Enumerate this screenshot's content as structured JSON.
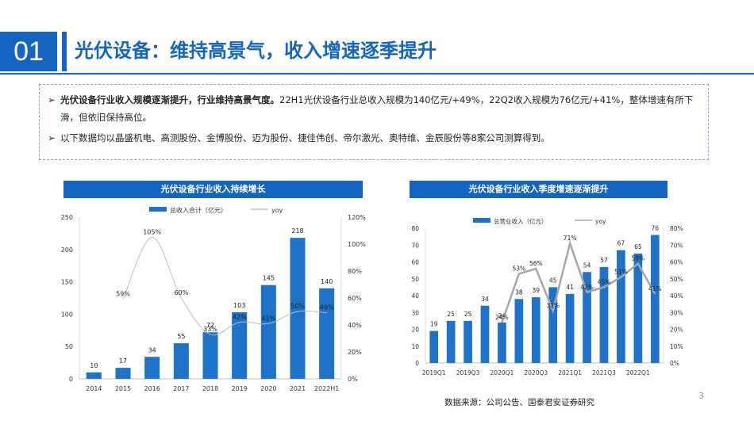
{
  "header": {
    "section_number": "01",
    "title": "光伏设备：维持高景气，收入增速逐季提升"
  },
  "summary": {
    "bullet1_bold": "光伏设备行业收入规模逐渐提升，行业维持高景气度。",
    "bullet1_text": "22H1光伏设备行业总收入规模为140亿元/+49%，22Q2收入规模为76亿元/+41%，整体增速有所下滑，但依旧保持高位。",
    "bullet2_text": "以下数据均以晶盛机电、高测股份、金博股份、迈为股份、捷佳伟创、帝尔激光、奥特维、金辰股份等8家公司测算得到。",
    "bullet_glyph": "➢"
  },
  "footer": {
    "source": "数据来源：公司公告、国泰君安证券研究",
    "page_number": "3"
  },
  "chart_data": [
    {
      "type": "bar",
      "title": "光伏设备行业收入持续增长",
      "categories": [
        "2014",
        "2015",
        "2016",
        "2017",
        "2018",
        "2019",
        "2020",
        "2021",
        "2022H1"
      ],
      "series": [
        {
          "name": "总收入合计（亿元）",
          "kind": "bar",
          "axis": "left",
          "values": [
            10,
            17,
            34,
            55,
            72,
            103,
            145,
            218,
            140
          ]
        },
        {
          "name": "yoy",
          "kind": "line",
          "axis": "right",
          "values": [
            null,
            0.59,
            1.05,
            0.6,
            0.33,
            0.42,
            0.41,
            0.5,
            0.49
          ],
          "labels": [
            "",
            "59%",
            "105%",
            "60%",
            "33%",
            "42%",
            "41%",
            "50%",
            "49%"
          ]
        }
      ],
      "ylim": [
        0,
        250
      ],
      "yticks": [
        "0",
        "50",
        "100",
        "150",
        "200",
        "250"
      ],
      "y2lim": [
        0,
        1.2
      ],
      "y2ticks": [
        "0%",
        "20%",
        "40%",
        "60%",
        "80%",
        "100%",
        "120%"
      ],
      "legend": "top",
      "grid": false,
      "colors": {
        "bar": "#1e73c8",
        "line": "#bdbdbd"
      }
    },
    {
      "type": "bar",
      "title": "光伏设备行业收入季度增速逐渐提升",
      "categories": [
        "2019Q1",
        "2019Q2",
        "2019Q3",
        "2019Q4",
        "2020Q1",
        "2020Q2",
        "2020Q3",
        "2020Q4",
        "2021Q1",
        "2021Q2",
        "2021Q3",
        "2021Q4",
        "2022Q1",
        "2022Q2"
      ],
      "tick_labels": [
        "2019Q1",
        "",
        "2019Q3",
        "",
        "2020Q1",
        "",
        "2020Q3",
        "",
        "2021Q1",
        "",
        "2021Q3",
        "",
        "2022Q1",
        ""
      ],
      "series": [
        {
          "name": "总营业收入（亿元）",
          "kind": "bar",
          "axis": "left",
          "values": [
            19,
            25,
            25,
            34,
            24,
            38,
            39,
            45,
            41,
            54,
            57,
            67,
            65,
            76
          ]
        },
        {
          "name": "yoy",
          "kind": "line",
          "axis": "right",
          "values": [
            null,
            null,
            null,
            null,
            0.24,
            0.53,
            0.56,
            0.31,
            0.71,
            0.42,
            0.45,
            0.51,
            0.59,
            0.41
          ],
          "labels": [
            "",
            "",
            "",
            "",
            "24%",
            "53%",
            "56%",
            "31%",
            "71%",
            "42%",
            "45%",
            "51%",
            "59%",
            "41%"
          ]
        }
      ],
      "ylim": [
        0,
        80
      ],
      "yticks": [
        "0",
        "10",
        "20",
        "30",
        "40",
        "50",
        "60",
        "70",
        "80"
      ],
      "y2lim": [
        0,
        0.8
      ],
      "y2ticks": [
        "0%",
        "10%",
        "20%",
        "30%",
        "40%",
        "50%",
        "60%",
        "70%",
        "80%"
      ],
      "legend": "top",
      "grid": false,
      "colors": {
        "bar": "#1e73c8",
        "line": "#a6a6a6"
      }
    }
  ]
}
